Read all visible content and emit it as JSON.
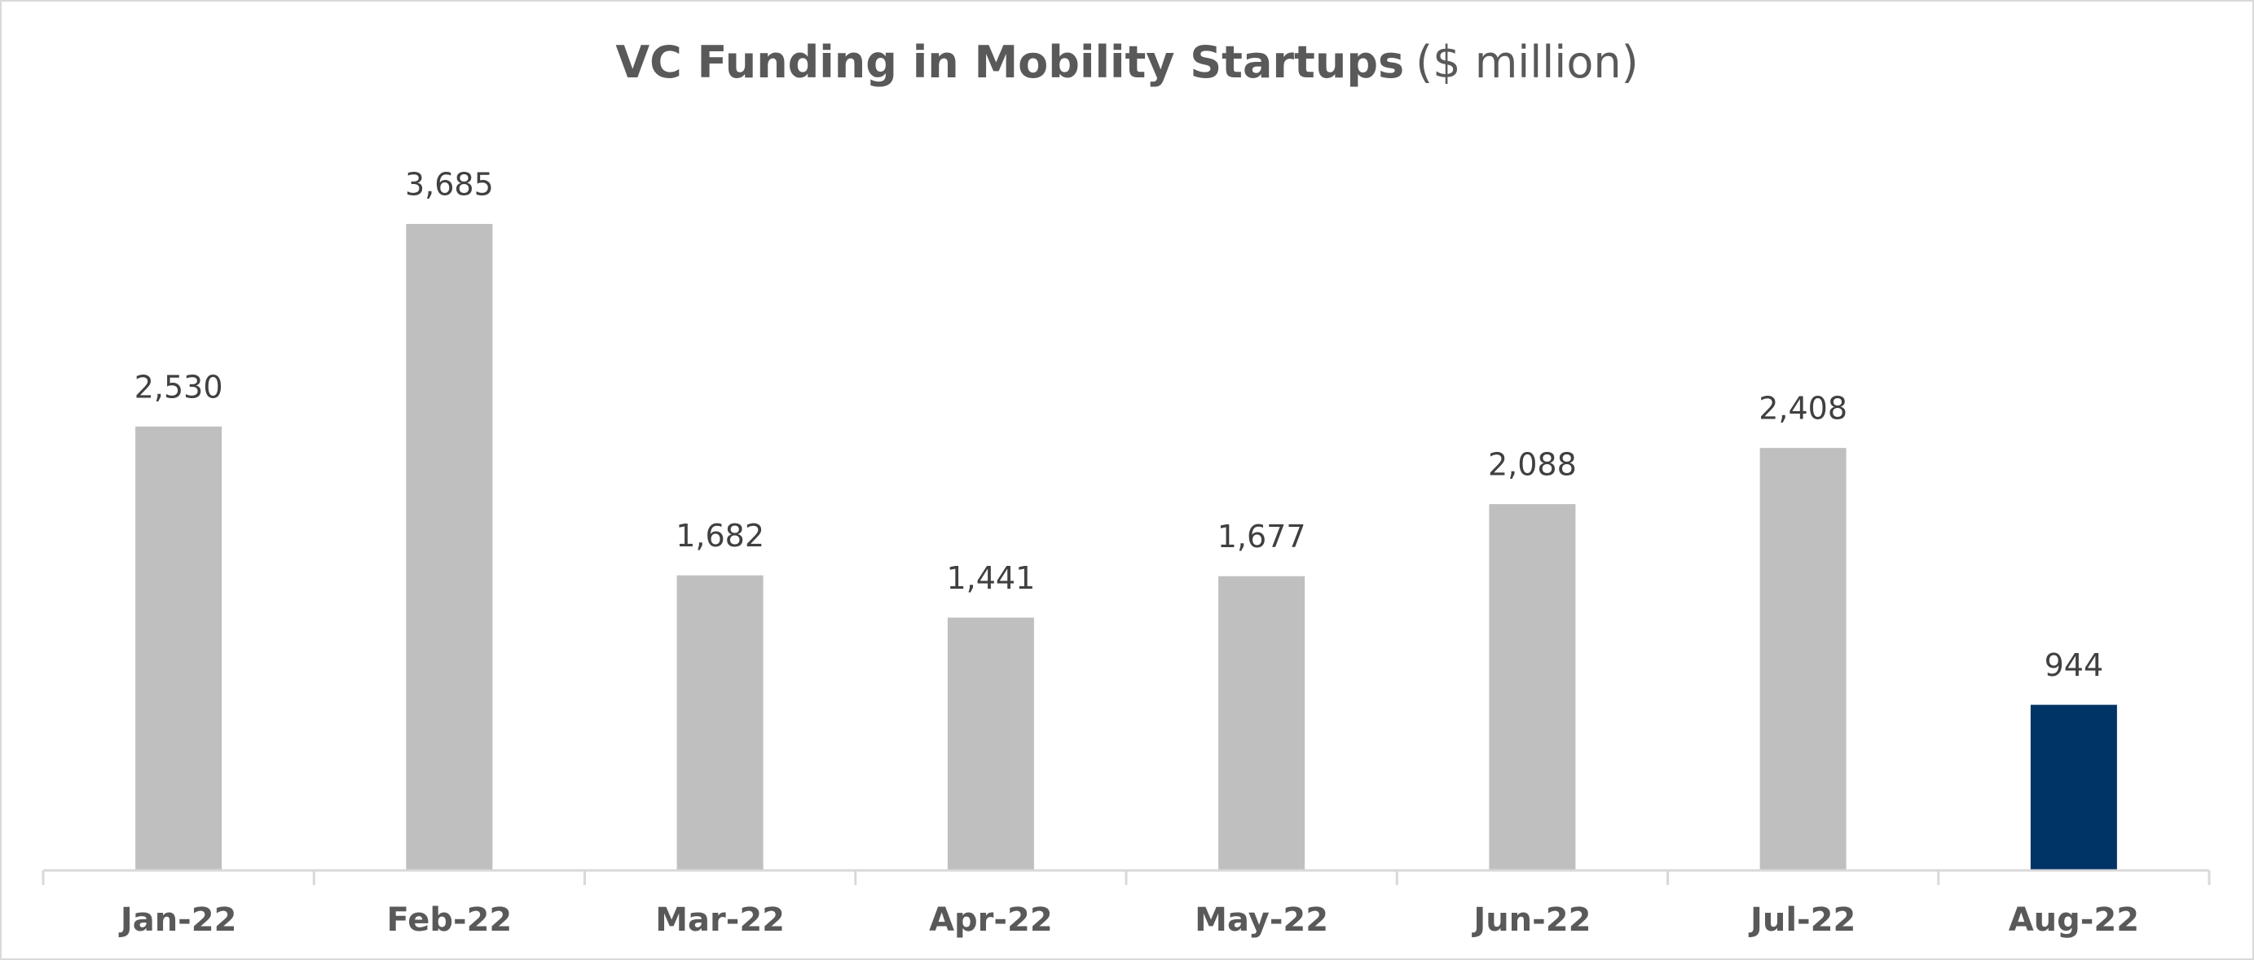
{
  "chart_data": {
    "type": "bar",
    "title": "VC Funding in Mobility Startups",
    "unit": "($ million)",
    "categories": [
      "Jan-22",
      "Feb-22",
      "Mar-22",
      "Apr-22",
      "May-22",
      "Jun-22",
      "Jul-22",
      "Aug-22"
    ],
    "values": [
      2530,
      3685,
      1682,
      1441,
      1677,
      2088,
      2408,
      944
    ],
    "value_labels": [
      "2,530",
      "3,685",
      "1,682",
      "1,441",
      "1,677",
      "2,088",
      "2,408",
      "944"
    ],
    "colors": [
      "#bfbfbf",
      "#bfbfbf",
      "#bfbfbf",
      "#bfbfbf",
      "#bfbfbf",
      "#bfbfbf",
      "#bfbfbf",
      "#003366"
    ]
  }
}
